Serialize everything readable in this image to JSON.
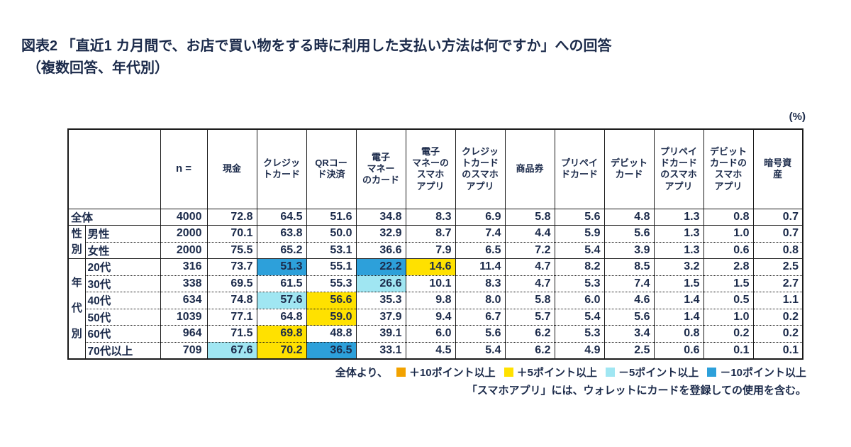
{
  "page": {
    "title_line1": "図表2 「直近1 カ月間で、お店で買い物をする時に利用した支払い方法は何ですか」への回答",
    "title_line2": "（複数回答、年代別）",
    "unit_label": "(%)"
  },
  "chart_data": {
    "type": "table",
    "title": "直近1カ月間で、お店で買い物をする時に利用した支払い方法（複数回答、年代別）",
    "unit": "%",
    "n_header": "n =",
    "columns": [
      "現金",
      "クレジッ\nトカード",
      "QRコー\nド決済",
      "電子\nマネー\nのカード",
      "電子\nマネーの\nスマホ\nアプリ",
      "クレジッ\nトカード\nのスマホ\nアプリ",
      "商品券",
      "プリペイ\nドカード",
      "デビット\nカード",
      "プリペイ\nドカード\nのスマホ\nアプリ",
      "デビット\nカードの\nスマホ\nアプリ",
      "暗号資\n産"
    ],
    "rows": [
      {
        "group": null,
        "group_span": 0,
        "label_colspan": 2,
        "label": "全体",
        "n": "4000",
        "sep": "solid",
        "values": [
          "72.8",
          "64.5",
          "51.6",
          "34.8",
          "8.3",
          "6.9",
          "5.8",
          "5.6",
          "4.8",
          "1.3",
          "0.8",
          "0.7"
        ],
        "highlights": {}
      },
      {
        "group": "性\n別",
        "group_span": 2,
        "label_colspan": 1,
        "label": "男性",
        "n": "2000",
        "sep": "solid",
        "values": [
          "70.1",
          "63.8",
          "50.0",
          "32.9",
          "8.7",
          "7.4",
          "4.4",
          "5.9",
          "5.6",
          "1.3",
          "1.0",
          "0.7"
        ],
        "highlights": {}
      },
      {
        "group": null,
        "group_span": 0,
        "label_colspan": 1,
        "label": "女性",
        "n": "2000",
        "sep": "dotted",
        "values": [
          "75.5",
          "65.2",
          "53.1",
          "36.6",
          "7.9",
          "6.5",
          "7.2",
          "5.4",
          "3.9",
          "1.3",
          "0.6",
          "0.8"
        ],
        "highlights": {}
      },
      {
        "group": "年\n代\n別",
        "group_span": 6,
        "label_colspan": 1,
        "label": "20代",
        "n": "316",
        "sep": "solid",
        "values": [
          "73.7",
          "51.3",
          "55.1",
          "22.2",
          "14.6",
          "11.4",
          "4.7",
          "8.2",
          "8.5",
          "3.2",
          "2.8",
          "2.5"
        ],
        "highlights": {
          "1": "minus10",
          "3": "minus10",
          "4": "plus5"
        }
      },
      {
        "group": null,
        "group_span": 0,
        "label_colspan": 1,
        "label": "30代",
        "n": "338",
        "sep": "dotted",
        "values": [
          "69.5",
          "61.5",
          "55.3",
          "26.6",
          "10.1",
          "8.3",
          "4.7",
          "5.3",
          "7.4",
          "1.5",
          "1.5",
          "2.7"
        ],
        "highlights": {
          "3": "minus5"
        }
      },
      {
        "group": null,
        "group_span": 0,
        "label_colspan": 1,
        "label": "40代",
        "n": "634",
        "sep": "dotted",
        "values": [
          "74.8",
          "57.6",
          "56.6",
          "35.3",
          "9.8",
          "8.0",
          "5.8",
          "6.0",
          "4.6",
          "1.4",
          "0.5",
          "1.1"
        ],
        "highlights": {
          "1": "minus5",
          "2": "plus5"
        }
      },
      {
        "group": null,
        "group_span": 0,
        "label_colspan": 1,
        "label": "50代",
        "n": "1039",
        "sep": "dotted",
        "values": [
          "77.1",
          "64.8",
          "59.0",
          "37.9",
          "9.4",
          "6.7",
          "5.7",
          "5.4",
          "5.6",
          "1.4",
          "1.0",
          "0.2"
        ],
        "highlights": {
          "2": "plus5"
        }
      },
      {
        "group": null,
        "group_span": 0,
        "label_colspan": 1,
        "label": "60代",
        "n": "964",
        "sep": "dotted",
        "values": [
          "71.5",
          "69.8",
          "48.8",
          "39.1",
          "6.0",
          "5.6",
          "6.2",
          "5.3",
          "3.4",
          "0.8",
          "0.2",
          "0.2"
        ],
        "highlights": {
          "1": "plus5"
        }
      },
      {
        "group": null,
        "group_span": 0,
        "label_colspan": 1,
        "label": "70代以上",
        "n": "709",
        "sep": "dotted",
        "values": [
          "67.6",
          "70.2",
          "36.5",
          "33.1",
          "4.5",
          "5.4",
          "6.2",
          "4.9",
          "2.5",
          "0.6",
          "0.1",
          "0.1"
        ],
        "highlights": {
          "0": "minus5",
          "1": "plus5",
          "2": "minus10"
        }
      }
    ]
  },
  "legend": {
    "prefix": "全体より、",
    "items": [
      {
        "key": "plus10",
        "label": "＋10ポイント以上",
        "color": "#F2A200"
      },
      {
        "key": "plus5",
        "label": "＋5ポイント以上",
        "color": "#FFE100"
      },
      {
        "key": "minus5",
        "label": "－5ポイント以上",
        "color": "#A0E6F2"
      },
      {
        "key": "minus10",
        "label": "－10ポイント以上",
        "color": "#2DA0DA"
      }
    ],
    "note": "「スマホアプリ」には、ウォレットにカードを登録しての使用を含む。"
  }
}
